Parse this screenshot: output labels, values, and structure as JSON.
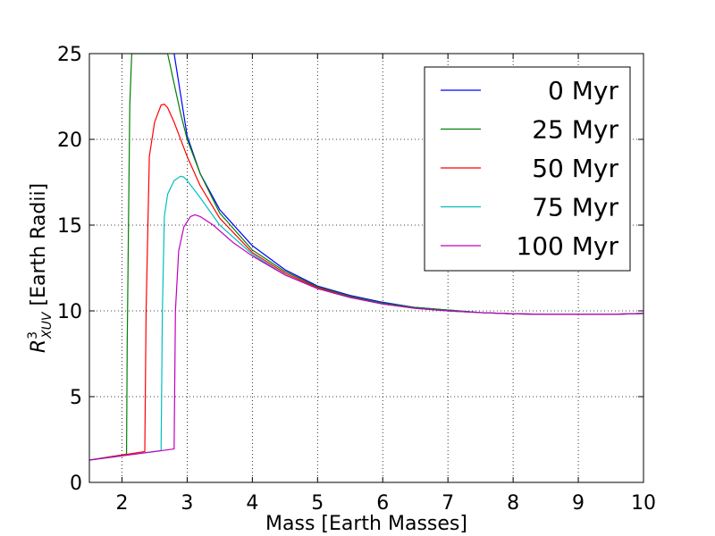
{
  "chart_data": {
    "type": "line",
    "title": "",
    "xlabel": "Mass [Earth Masses]",
    "ylabel_symbol": "R",
    "ylabel_superscript": "3",
    "ylabel_subscript": "XUV",
    "ylabel_text": " [Earth Radii]",
    "xlim": [
      1.5,
      10
    ],
    "ylim": [
      0,
      25
    ],
    "xticks": [
      "2",
      "3",
      "4",
      "5",
      "6",
      "7",
      "8",
      "9",
      "10"
    ],
    "xtick_values": [
      2,
      3,
      4,
      5,
      6,
      7,
      8,
      9,
      10
    ],
    "yticks": [
      "0",
      "5",
      "10",
      "15",
      "20",
      "25"
    ],
    "ytick_values": [
      0,
      5,
      10,
      15,
      20,
      25
    ],
    "grid": true,
    "grid_style": "dotted",
    "legend_position": "top-right",
    "series": [
      {
        "name": "0 Myr",
        "color": "#0000ff",
        "x": [
          2.8,
          3.0,
          3.2,
          3.5,
          4.0,
          4.5,
          5.0,
          5.5,
          6.0,
          6.5,
          7.0,
          7.5,
          8.0,
          8.5,
          9.0,
          9.5,
          10.0
        ],
        "y": [
          25.0,
          20.2,
          18.0,
          15.9,
          13.8,
          12.4,
          11.45,
          10.9,
          10.5,
          10.2,
          10.05,
          9.9,
          9.83,
          9.8,
          9.8,
          9.8,
          9.85
        ]
      },
      {
        "name": "25 Myr",
        "color": "#008000",
        "x": [
          1.5,
          2.07,
          2.08,
          2.12,
          2.15,
          2.2,
          2.5,
          2.7,
          2.9,
          3.0,
          3.2,
          3.5,
          4.0,
          4.5,
          5.0,
          5.5,
          6.0,
          6.5,
          7.0,
          7.5,
          8.0,
          8.5,
          9.0,
          9.5,
          10.0
        ],
        "y": [
          1.3,
          1.65,
          8.0,
          22.0,
          25.0,
          25.0,
          25.0,
          25.0,
          21.5,
          20.0,
          18.0,
          15.7,
          13.55,
          12.3,
          11.4,
          10.85,
          10.45,
          10.2,
          10.05,
          9.9,
          9.83,
          9.8,
          9.8,
          9.8,
          9.85
        ]
      },
      {
        "name": "50 Myr",
        "color": "#ff0000",
        "x": [
          1.5,
          2.35,
          2.37,
          2.42,
          2.5,
          2.6,
          2.65,
          2.7,
          2.8,
          3.0,
          3.2,
          3.5,
          4.0,
          4.5,
          5.0,
          5.5,
          6.0,
          6.5,
          7.0,
          7.5,
          8.0,
          8.5,
          9.0,
          9.5,
          10.0
        ],
        "y": [
          1.3,
          1.8,
          10.0,
          19.0,
          21.0,
          22.0,
          22.05,
          21.85,
          21.0,
          19.0,
          17.3,
          15.4,
          13.4,
          12.2,
          11.35,
          10.8,
          10.4,
          10.15,
          10.0,
          9.9,
          9.83,
          9.8,
          9.8,
          9.8,
          9.85
        ]
      },
      {
        "name": "75 Myr",
        "color": "#00bfbf",
        "x": [
          1.5,
          2.6,
          2.62,
          2.65,
          2.7,
          2.8,
          2.9,
          2.95,
          3.0,
          3.2,
          3.5,
          4.0,
          4.5,
          5.0,
          5.5,
          6.0,
          6.5,
          7.0,
          7.5,
          8.0,
          8.5,
          9.0,
          9.5,
          10.0
        ],
        "y": [
          1.3,
          1.85,
          10.0,
          15.5,
          16.8,
          17.6,
          17.85,
          17.8,
          17.6,
          16.6,
          15.0,
          13.3,
          12.1,
          11.3,
          10.78,
          10.4,
          10.15,
          10.0,
          9.9,
          9.83,
          9.8,
          9.8,
          9.8,
          9.85
        ]
      },
      {
        "name": "100 Myr",
        "color": "#bf00bf",
        "x": [
          1.5,
          2.8,
          2.82,
          2.87,
          2.95,
          3.05,
          3.12,
          3.2,
          3.4,
          3.7,
          4.0,
          4.5,
          5.0,
          5.5,
          6.0,
          6.5,
          7.0,
          7.5,
          8.0,
          8.5,
          9.0,
          9.5,
          10.0
        ],
        "y": [
          1.3,
          1.95,
          10.0,
          13.5,
          14.9,
          15.5,
          15.6,
          15.5,
          15.0,
          14.0,
          13.2,
          12.1,
          11.3,
          10.78,
          10.4,
          10.15,
          10.0,
          9.9,
          9.83,
          9.8,
          9.8,
          9.8,
          9.85
        ]
      }
    ]
  }
}
